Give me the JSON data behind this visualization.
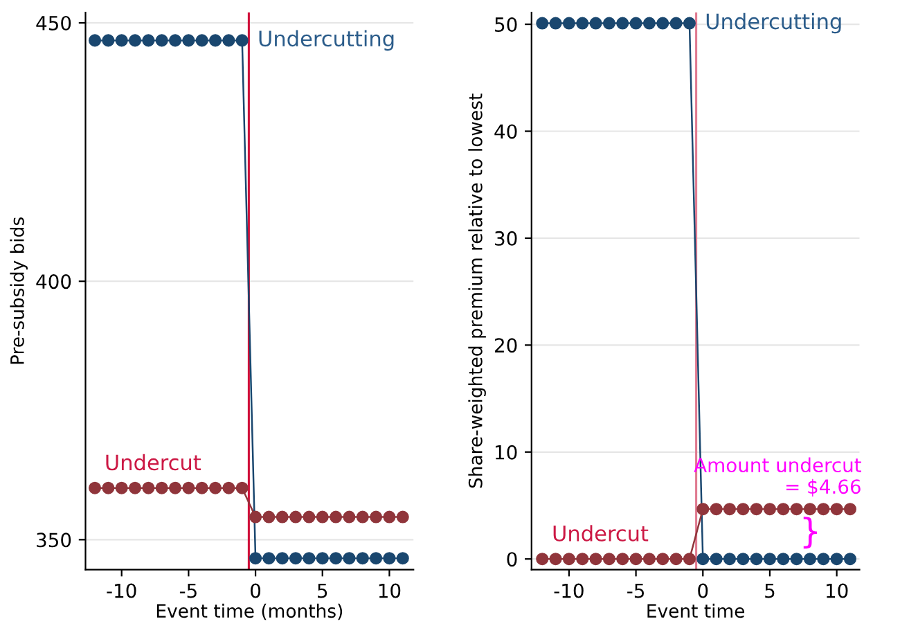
{
  "chart_data": [
    {
      "type": "line",
      "xlabel": "Event time (months)",
      "ylabel": "Pre-subsidy bids",
      "x": [
        -12,
        -11,
        -10,
        -9,
        -8,
        -7,
        -6,
        -5,
        -4,
        -3,
        -2,
        -1,
        0,
        1,
        2,
        3,
        4,
        5,
        6,
        7,
        8,
        9,
        10,
        11
      ],
      "series": [
        {
          "name": "Undercutting",
          "color": "#1a476f",
          "values": [
            446.6,
            446.6,
            446.6,
            446.6,
            446.6,
            446.6,
            446.6,
            446.6,
            446.6,
            446.6,
            446.6,
            446.6,
            346.4,
            346.4,
            346.4,
            346.4,
            346.4,
            346.4,
            346.4,
            346.4,
            346.4,
            346.4,
            346.4,
            346.4
          ]
        },
        {
          "name": "Undercut",
          "color": "#90353b",
          "values": [
            360.0,
            360.0,
            360.0,
            360.0,
            360.0,
            360.0,
            360.0,
            360.0,
            360.0,
            360.0,
            360.0,
            360.0,
            354.4,
            354.4,
            354.4,
            354.4,
            354.4,
            354.4,
            354.4,
            354.4,
            354.4,
            354.4,
            354.4,
            354.4
          ]
        }
      ],
      "xlim": [
        -12.7,
        11.8
      ],
      "xticks": [
        -10,
        -5,
        0,
        5,
        10
      ],
      "ylim": [
        344.2,
        452
      ],
      "yticks": [
        350,
        400,
        450
      ],
      "ref_lines": [
        {
          "axis": "x",
          "value": -0.5,
          "color": "#d0103a"
        }
      ],
      "grid": "y",
      "marker": "circle",
      "line_style": "solid",
      "legend": false
    },
    {
      "type": "line",
      "xlabel": "Event time",
      "ylabel": "Share-weighted premium relative to lowest",
      "x": [
        -12,
        -11,
        -10,
        -9,
        -8,
        -7,
        -6,
        -5,
        -4,
        -3,
        -2,
        -1,
        0,
        1,
        2,
        3,
        4,
        5,
        6,
        7,
        8,
        9,
        10,
        11
      ],
      "series": [
        {
          "name": "Undercutting",
          "color": "#1a476f",
          "values": [
            50.1,
            50.1,
            50.1,
            50.1,
            50.1,
            50.1,
            50.1,
            50.1,
            50.1,
            50.1,
            50.1,
            50.1,
            0,
            0,
            0,
            0,
            0,
            0,
            0,
            0,
            0,
            0,
            0,
            0
          ]
        },
        {
          "name": "Undercut",
          "color": "#90353b",
          "values": [
            0,
            0,
            0,
            0,
            0,
            0,
            0,
            0,
            0,
            0,
            0,
            0,
            4.66,
            4.66,
            4.66,
            4.66,
            4.66,
            4.66,
            4.66,
            4.66,
            4.66,
            4.66,
            4.66,
            4.66
          ]
        }
      ],
      "xlim": [
        -12.8,
        11.7
      ],
      "xticks": [
        -10,
        -5,
        0,
        5,
        10
      ],
      "ylim": [
        -1.0,
        51.1
      ],
      "yticks": [
        0,
        10,
        20,
        30,
        40,
        50
      ],
      "ref_lines": [
        {
          "axis": "x",
          "value": -0.5,
          "color": "#e07a90"
        }
      ],
      "annotations": [
        {
          "text": "Amount undercut\n= $4.66",
          "x": 11,
          "y": 4.66
        },
        "}"
      ],
      "grid": "y",
      "marker": "circle",
      "line_style": "solid",
      "legend": false
    }
  ]
}
